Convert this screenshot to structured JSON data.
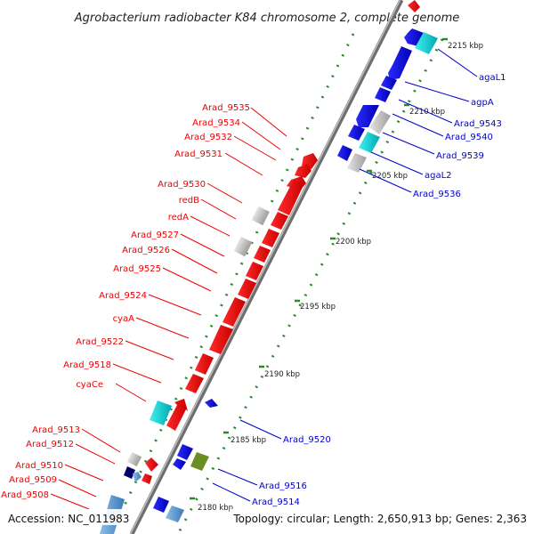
{
  "title": "Agrobacterium radiobacter K84 chromosome 2, complete genome",
  "accession": "Accession: NC_011983",
  "summary": "Topology: circular; Length: 2,650,913 bp; Genes: 2,363",
  "colors": {
    "forward": "#ff0000",
    "reverse": "#0000ee",
    "rna": "#00cccc",
    "other": "#c8c8c8",
    "tick": "#2a8a2a",
    "backbone": "#777777",
    "label_forward": "#ee0000",
    "label_reverse": "#0000cc"
  },
  "kbp_labels": [
    "2215 kbp",
    "2210 kbp",
    "2205 kbp",
    "2200 kbp",
    "2195 kbp",
    "2190 kbp",
    "2185 kbp",
    "2180 kbp"
  ],
  "forward_labels": [
    "Arad_9535",
    "Arad_9534",
    "Arad_9532",
    "Arad_9531",
    "Arad_9530",
    "redB",
    "redA",
    "Arad_9527",
    "Arad_9526",
    "Arad_9525",
    "Arad_9524",
    "cyaA",
    "Arad_9522",
    "Arad_9518",
    "cyaCe",
    "Arad_9513",
    "Arad_9512",
    "Arad_9510",
    "Arad_9509",
    "Arad_9508"
  ],
  "reverse_labels": [
    "agaL1",
    "agpA",
    "Arad_9543",
    "Arad_9540",
    "Arad_9539",
    "agaL2",
    "Arad_9536",
    "Arad_9520",
    "Arad_9516",
    "Arad_9514"
  ]
}
